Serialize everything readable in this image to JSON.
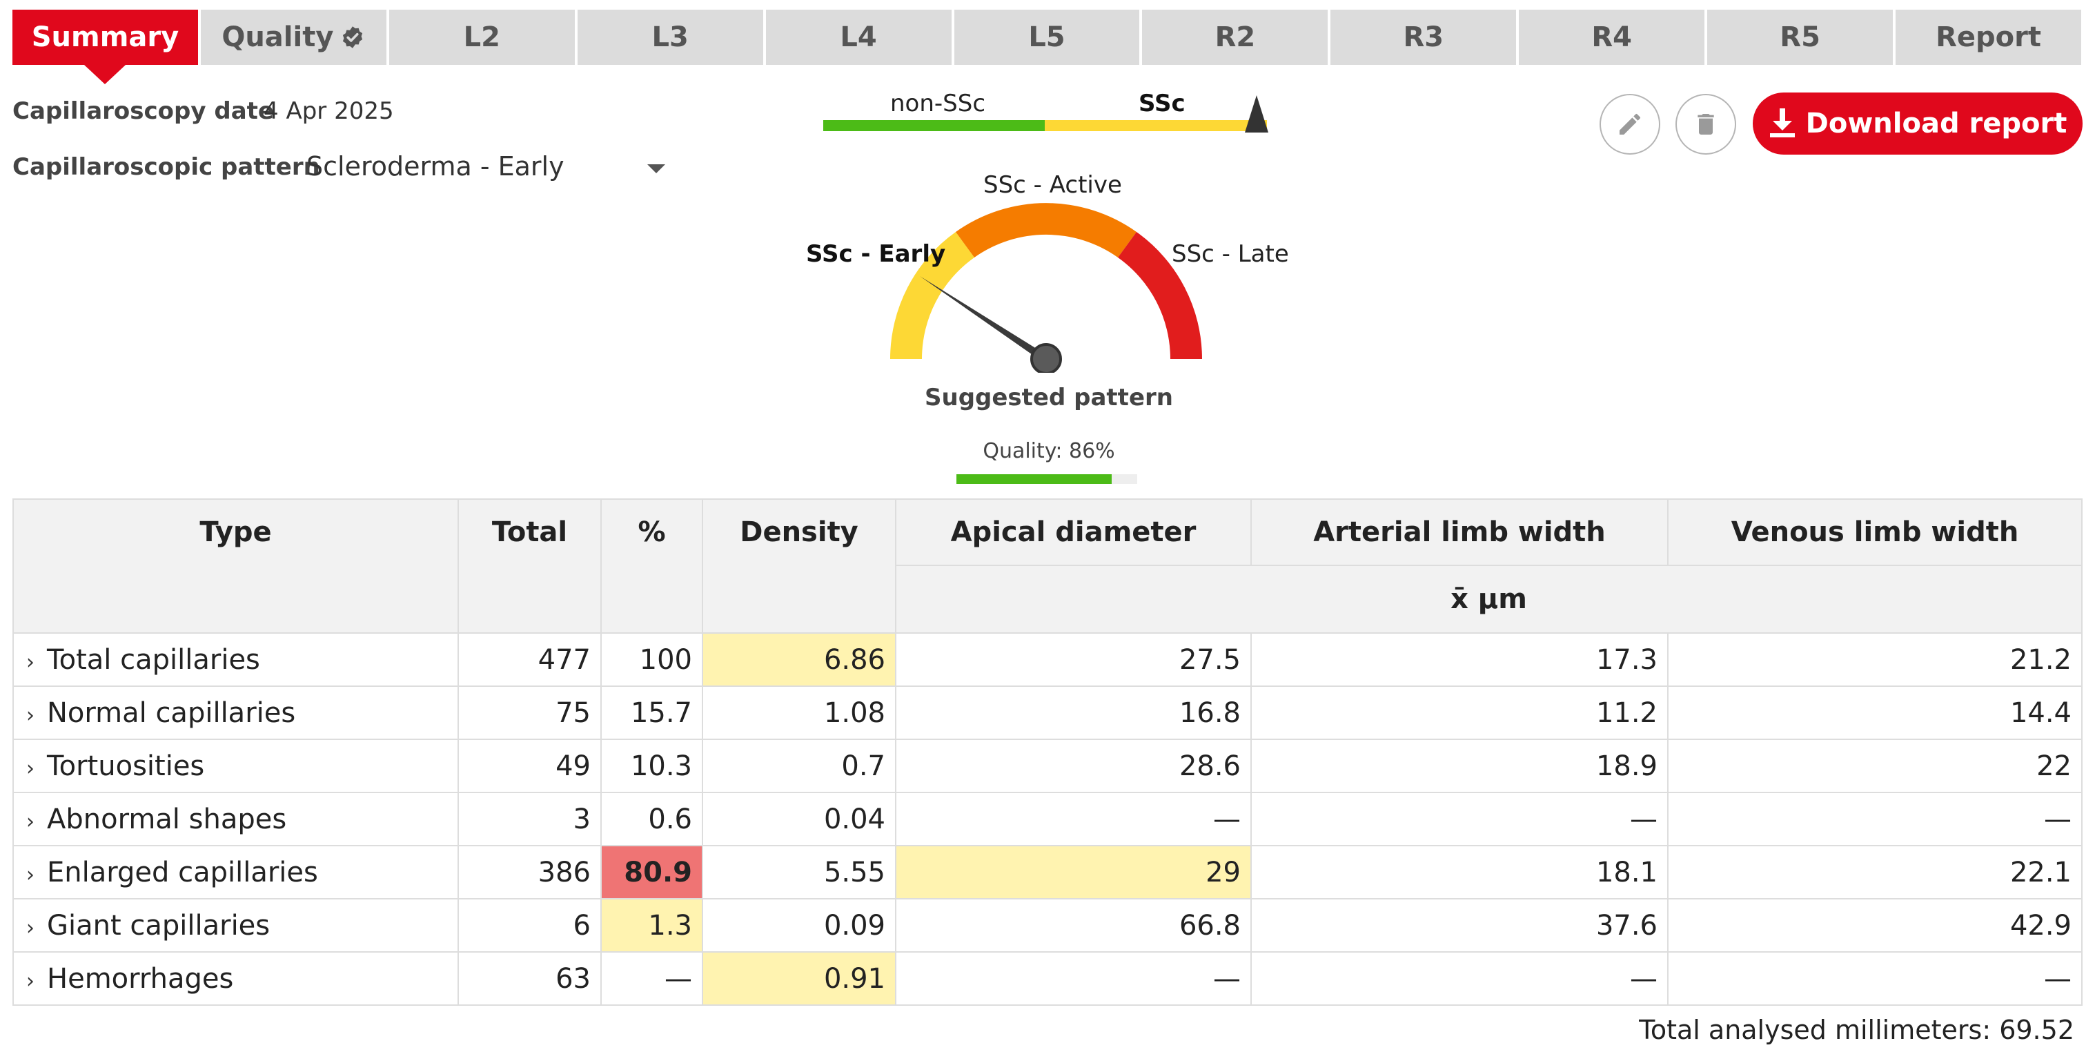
{
  "tabs": [
    {
      "label": "Summary",
      "active": true
    },
    {
      "label": "Quality",
      "verified": true
    },
    {
      "label": "L2"
    },
    {
      "label": "L3"
    },
    {
      "label": "L4"
    },
    {
      "label": "L5"
    },
    {
      "label": "R2"
    },
    {
      "label": "R3"
    },
    {
      "label": "R4"
    },
    {
      "label": "R5"
    },
    {
      "label": "Report"
    }
  ],
  "info": {
    "date_label": "Capillaroscopy date",
    "date_value": "4 Apr 2025",
    "pattern_label": "Capillaroscopic pattern",
    "pattern_value": "Scleroderma - Early"
  },
  "scale": {
    "left_label": "non-SSc",
    "right_label": "SSc"
  },
  "gauge": {
    "early_label": "SSc - Early",
    "active_label": "SSc - Active",
    "late_label": "SSc - Late",
    "suggested_label": "Suggested pattern",
    "quality_text": "Quality: 86%",
    "quality_value": 0.86
  },
  "actions": {
    "edit_icon": "pencil-icon",
    "delete_icon": "trash-icon",
    "download_label": "Download report"
  },
  "table": {
    "headers": {
      "type": "Type",
      "total": "Total",
      "percent": "%",
      "density": "Density",
      "apical": "Apical diameter",
      "arterial": "Arterial limb width",
      "venous": "Venous limb width",
      "unit": "x̄ µm"
    },
    "rows": [
      {
        "type": "Total capillaries",
        "total": "477",
        "percent": "100",
        "density": "6.86",
        "apical": "27.5",
        "arterial": "17.3",
        "venous": "21.2"
      },
      {
        "type": "Normal capillaries",
        "total": "75",
        "percent": "15.7",
        "density": "1.08",
        "apical": "16.8",
        "arterial": "11.2",
        "venous": "14.4"
      },
      {
        "type": "Tortuosities",
        "total": "49",
        "percent": "10.3",
        "density": "0.7",
        "apical": "28.6",
        "arterial": "18.9",
        "venous": "22"
      },
      {
        "type": "Abnormal shapes",
        "total": "3",
        "percent": "0.6",
        "density": "0.04",
        "apical": "—",
        "arterial": "—",
        "venous": "—"
      },
      {
        "type": "Enlarged capillaries",
        "total": "386",
        "percent": "80.9",
        "density": "5.55",
        "apical": "29",
        "arterial": "18.1",
        "venous": "22.1"
      },
      {
        "type": "Giant capillaries",
        "total": "6",
        "percent": "1.3",
        "density": "0.09",
        "apical": "66.8",
        "arterial": "37.6",
        "venous": "42.9"
      },
      {
        "type": "Hemorrhages",
        "total": "63",
        "percent": "—",
        "density": "0.91",
        "apical": "—",
        "arterial": "—",
        "venous": "—"
      }
    ],
    "highlight_colors": {
      "warning": "#fff3b0",
      "alert": "#ef7474"
    }
  },
  "footer": {
    "total_mm": "Total analysed millimeters: 69.52"
  },
  "colors": {
    "brand_red": "#e0081c",
    "gauge_yellow": "#fdd835",
    "gauge_orange": "#f57c00",
    "gauge_red": "#e11d1d",
    "green": "#4cbb17"
  }
}
